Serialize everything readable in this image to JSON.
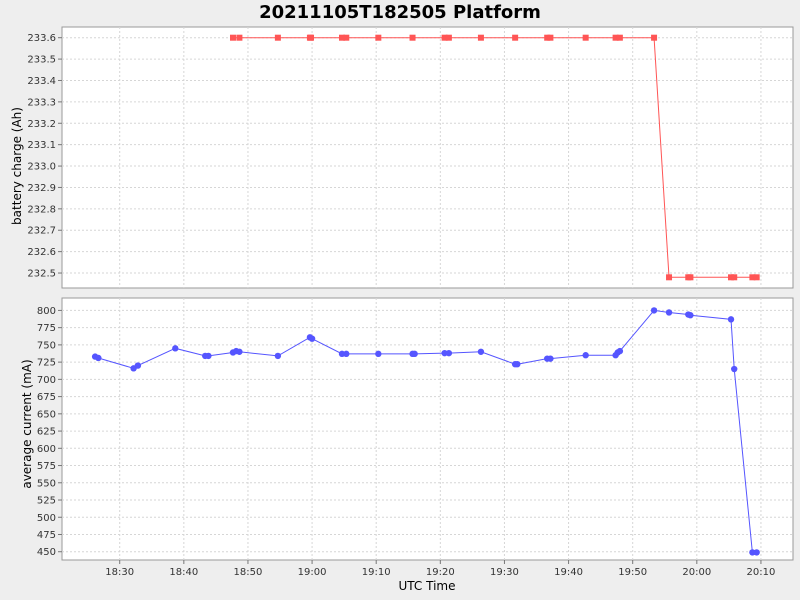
{
  "chart_data": {
    "title": "20211105T182505 Platform",
    "type": "line",
    "xlabel": "UTC Time",
    "x_ticks": [
      "18:30",
      "18:40",
      "18:50",
      "19:00",
      "19:10",
      "19:20",
      "19:30",
      "19:40",
      "19:50",
      "20:00",
      "20:10"
    ],
    "xlim": [
      "18:21",
      "20:15"
    ],
    "grid": true,
    "panels": [
      {
        "ylabel": "battery charge (Ah)",
        "ylim": [
          232.43,
          233.65
        ],
        "y_ticks": [
          "233.6",
          "233.5",
          "233.4",
          "233.3",
          "233.2",
          "233.1",
          "233.0",
          "232.9",
          "232.8",
          "232.7",
          "232.6",
          "232.5"
        ],
        "color": "#ff5555",
        "marker": "square",
        "series": [
          {
            "x": [
              "18:47:40",
              "18:48:40",
              "18:54:40",
              "18:59:40",
              "18:59:50",
              "19:04:40",
              "19:05:20",
              "19:10:20",
              "19:15:40",
              "19:20:40",
              "19:21:20",
              "19:26:20",
              "19:31:40",
              "19:36:40",
              "19:37:10",
              "19:42:40",
              "19:47:20",
              "19:48:00",
              "19:53:20",
              "19:55:40",
              "19:58:40",
              "19:59:00",
              "20:05:20",
              "20:05:50",
              "20:08:40",
              "20:09:20"
            ],
            "y": [
              233.6,
              233.6,
              233.6,
              233.6,
              233.6,
              233.6,
              233.6,
              233.6,
              233.6,
              233.6,
              233.6,
              233.6,
              233.6,
              233.6,
              233.6,
              233.6,
              233.6,
              233.6,
              233.6,
              232.48,
              232.48,
              232.48,
              232.48,
              232.48,
              232.48,
              232.48
            ]
          }
        ]
      },
      {
        "ylabel": "average current (mA)",
        "ylim": [
          438,
          818
        ],
        "y_ticks": [
          "800",
          "775",
          "750",
          "725",
          "700",
          "675",
          "650",
          "625",
          "600",
          "575",
          "550",
          "525",
          "500",
          "475",
          "450"
        ],
        "color": "#5555ff",
        "marker": "circle",
        "series": [
          {
            "x": [
              "18:26:10",
              "18:26:40",
              "18:32:10",
              "18:32:50",
              "18:38:40",
              "18:43:20",
              "18:43:50",
              "18:47:40",
              "18:48:10",
              "18:48:40",
              "18:54:40",
              "18:59:40",
              "19:00:00",
              "19:04:40",
              "19:05:20",
              "19:10:20",
              "19:15:40",
              "19:16:00",
              "19:20:40",
              "19:21:20",
              "19:26:20",
              "19:31:40",
              "19:32:00",
              "19:36:40",
              "19:37:10",
              "19:42:40",
              "19:47:20",
              "19:47:40",
              "19:48:00",
              "19:53:20",
              "19:55:40",
              "19:58:40",
              "19:59:00",
              "20:05:20",
              "20:05:50",
              "20:08:40",
              "20:09:20"
            ],
            "y": [
              733,
              731,
              716,
              720,
              745,
              734,
              734,
              739,
              741,
              740,
              734,
              761,
              759,
              737,
              737,
              737,
              737,
              737,
              738,
              738,
              740,
              722,
              722,
              730,
              730,
              735,
              735,
              739,
              741,
              800,
              797,
              794,
              793,
              787,
              715,
              449,
              449
            ]
          }
        ]
      }
    ]
  }
}
